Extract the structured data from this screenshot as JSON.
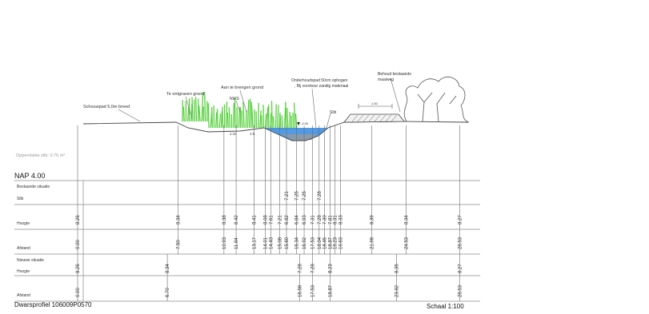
{
  "annotations": {
    "schouwpad": "Schouwpad 5,0m breed",
    "te_ontgraven": "Te ontgraven grond",
    "aan_te_brengen": "Aan te brengen grond",
    "nws": "NWS",
    "onderhoudspad": "Onderhoudspad 50cm ophogen\n, Bij voorkeur zandig materiaal",
    "behoud_bestaande": "Behoud bestaande\nmaaiweg",
    "slib": "Slib",
    "pad_breedte": "1.00",
    "slope_left_1": "1:10",
    "slope_left_2": "1:5",
    "water_level_label": "-4.00",
    "oppervlakte": "Oppervlakte slib: 0.76 m²"
  },
  "nap": "NAP 4.00",
  "rows": {
    "bestaande_situatie": "Bestaande situatie",
    "slib": "Slib",
    "hoogte": "Hoogte",
    "afstand": "Afstand",
    "nieuwe_situatie": "Nieuwe situatie",
    "hoogte_nieuw": "Hoogte",
    "afstand_nieuw": "Afstand"
  },
  "existing": [
    {
      "afstand": "0.00",
      "hoogte": "8.26"
    },
    {
      "afstand": "7.50",
      "hoogte": "8.34"
    },
    {
      "afstand": "10.93",
      "hoogte": "8.38"
    },
    {
      "afstand": "11.84",
      "hoogte": "8.42"
    },
    {
      "afstand": "13.17",
      "hoogte": "8.41"
    },
    {
      "afstand": "14.01",
      "hoogte": "8.08"
    },
    {
      "afstand": "14.43",
      "hoogte": "7.61"
    },
    {
      "afstand": "15.08",
      "hoogte": "7.21"
    },
    {
      "afstand": "15.60",
      "hoogte": "6.82",
      "slib": "7.21"
    },
    {
      "afstand": "16.34",
      "hoogte": "6.84",
      "slib": "7.25"
    },
    {
      "afstand": "16.92",
      "hoogte": "6.93",
      "slib": "7.25"
    },
    {
      "afstand": "17.53",
      "hoogte": "7.31"
    },
    {
      "afstand": "18.04",
      "hoogte": "7.28",
      "slib": "7.28"
    },
    {
      "afstand": "18.45",
      "hoogte": "7.30"
    },
    {
      "afstand": "18.87",
      "hoogte": "7.81"
    },
    {
      "afstand": "19.23",
      "hoogte": "8.31"
    },
    {
      "afstand": "19.63",
      "hoogte": "8.33"
    },
    {
      "afstand": "21.98",
      "hoogte": "8.39"
    },
    {
      "afstand": "24.53",
      "hoogte": "8.34"
    },
    {
      "afstand": "28.53",
      "hoogte": "8.27"
    }
  ],
  "new": [
    {
      "afstand": "0.00",
      "hoogte": "8.26"
    },
    {
      "afstand": "6.70",
      "hoogte": "8.34"
    },
    {
      "afstand": "16.58",
      "hoogte": "7.28"
    },
    {
      "afstand": "17.53",
      "hoogte": "7.28"
    },
    {
      "afstand": "18.87",
      "hoogte": "8.23"
    },
    {
      "afstand": "23.82",
      "hoogte": "8.35"
    },
    {
      "afstand": "28.53",
      "hoogte": "8.27"
    }
  ],
  "footer": {
    "profile_id": "Dwarsprofiel 106009P0570",
    "scale": "Schaal 1:100"
  },
  "colors": {
    "water": "#3f8fe0",
    "vegetation": "#56d03c",
    "grid": "#8a8a8a"
  }
}
